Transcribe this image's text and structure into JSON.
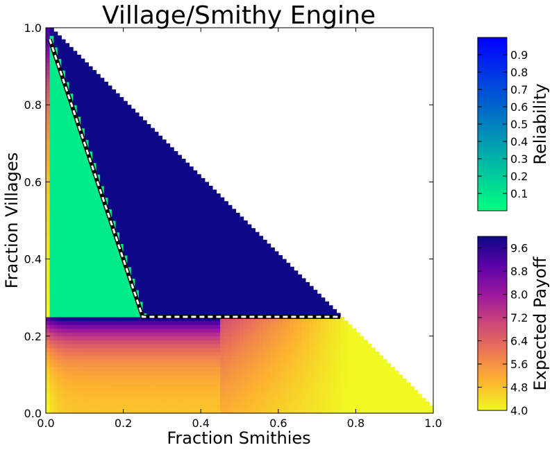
{
  "chart_data": {
    "type": "heatmap",
    "title": "Village/Smithy Engine",
    "xlabel": "Fraction Smithies",
    "ylabel": "Fraction Villages",
    "xlim": [
      0.0,
      1.0
    ],
    "ylim": [
      0.0,
      1.0
    ],
    "xticks": [
      "0.0",
      "0.2",
      "0.4",
      "0.6",
      "0.8",
      "1.0"
    ],
    "yticks": [
      "0.0",
      "0.2",
      "0.4",
      "0.6",
      "0.8",
      "1.0"
    ],
    "grid_resolution": 0.01,
    "domain": "x + y <= 1",
    "reliable_region_boundary": {
      "style": "white dashed on black",
      "vertices": [
        [
          0.01,
          0.97
        ],
        [
          0.25,
          0.25
        ],
        [
          0.76,
          0.25
        ]
      ]
    },
    "colorbars": [
      {
        "label": "Reliability",
        "colormap": "winter_r",
        "range": [
          0.0,
          1.0
        ],
        "ticks": [
          "0.1",
          "0.2",
          "0.3",
          "0.4",
          "0.5",
          "0.6",
          "0.7",
          "0.8",
          "0.9"
        ],
        "tick_values": [
          0.1,
          0.2,
          0.3,
          0.4,
          0.5,
          0.6,
          0.7,
          0.8,
          0.9
        ],
        "colors": [
          "#00ff80",
          "#0000ff"
        ]
      },
      {
        "label": "Expected Payoff",
        "colormap": "plasma_r",
        "range": [
          4.0,
          10.0
        ],
        "ticks": [
          "4.0",
          "4.8",
          "5.6",
          "6.4",
          "7.2",
          "8.0",
          "8.8",
          "9.6"
        ],
        "tick_values": [
          4.0,
          4.8,
          5.6,
          6.4,
          7.2,
          8.0,
          8.8,
          9.6
        ],
        "colors": [
          "#f0f921",
          "#fdb42f",
          "#ed7953",
          "#cc4778",
          "#9c179e",
          "#5c01a6",
          "#0d0887"
        ]
      }
    ]
  }
}
